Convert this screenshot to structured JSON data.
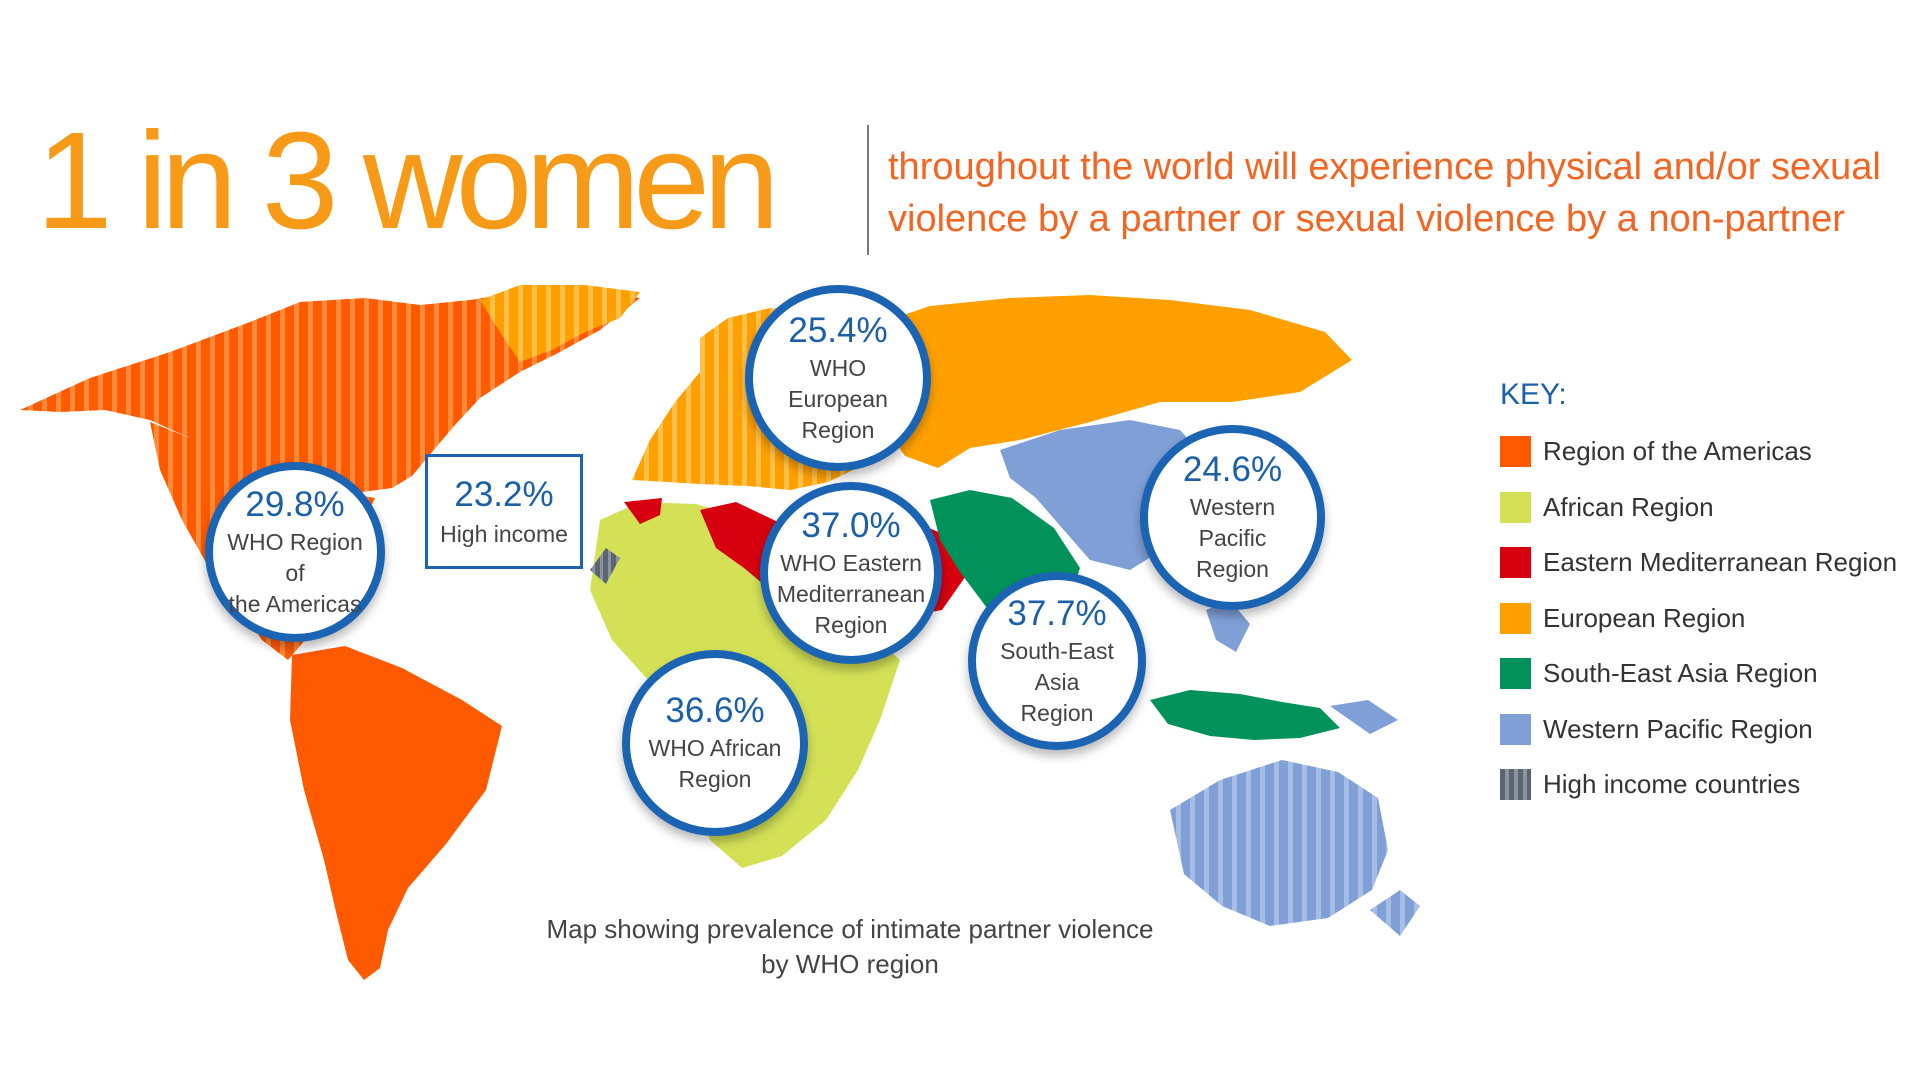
{
  "headline": "1 in 3 women",
  "subheadline": {
    "line1": "throughout the world will experience physical and/or sexual",
    "line2": "violence by a partner or sexual violence by a non-partner"
  },
  "colors": {
    "americas": "#ff5a00",
    "african": "#d4e157",
    "eastern_mediterranean": "#d7000f",
    "european": "#ffa000",
    "south_east_asia": "#00925a",
    "western_pacific": "#7f9fd6",
    "high_income": "#5b6572",
    "headline": "#f79a17",
    "subheadline": "#f26522",
    "accent_blue": "#1b63b3"
  },
  "regions": {
    "americas": {
      "value": "29.8%",
      "line1": "WHO Region of",
      "line2": "the Americas"
    },
    "high_income": {
      "value": "23.2%",
      "label": "High income"
    },
    "european": {
      "value": "25.4%",
      "line1": "WHO European",
      "line2": "Region"
    },
    "eastern_mediterranean": {
      "value": "37.0%",
      "line1": "WHO Eastern",
      "line2": "Mediterranean",
      "line3": "Region"
    },
    "african": {
      "value": "36.6%",
      "line1": "WHO African",
      "line2": "Region"
    },
    "south_east_asia": {
      "value": "37.7%",
      "line1": "South-East Asia",
      "line2": "Region"
    },
    "western_pacific": {
      "value": "24.6%",
      "line1": "Western Pacific",
      "line2": "Region"
    }
  },
  "key": {
    "title": "KEY:",
    "items": [
      {
        "label": "Region of the Americas",
        "color": "#ff5a00",
        "pattern": "solid"
      },
      {
        "label": "African Region",
        "color": "#d4e157",
        "pattern": "solid"
      },
      {
        "label": "Eastern Mediterranean Region",
        "color": "#d7000f",
        "pattern": "solid"
      },
      {
        "label": "European Region",
        "color": "#ffa000",
        "pattern": "solid"
      },
      {
        "label": "South-East Asia Region",
        "color": "#00925a",
        "pattern": "solid"
      },
      {
        "label": "Western Pacific Region",
        "color": "#7f9fd6",
        "pattern": "solid"
      },
      {
        "label": "High income countries",
        "color": "#5b6572",
        "pattern": "striped"
      }
    ]
  },
  "caption": {
    "line1": "Map showing prevalence of intimate partner violence",
    "line2": "by WHO region"
  }
}
